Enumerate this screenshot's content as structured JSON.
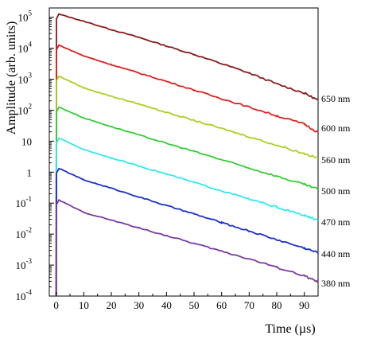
{
  "chart_data": {
    "type": "line",
    "xlabel": "Time (µs)",
    "ylabel": "Amplitude (arb. units)",
    "xlim": [
      -2.5,
      95
    ],
    "ylim_log10": [
      -4,
      5.3
    ],
    "y_scale": "log",
    "grid": false,
    "x_ticks": [
      {
        "v": 0,
        "label": "0"
      },
      {
        "v": 10,
        "label": "10"
      },
      {
        "v": 20,
        "label": "20"
      },
      {
        "v": 30,
        "label": "30"
      },
      {
        "v": 40,
        "label": "40"
      },
      {
        "v": 50,
        "label": "50"
      },
      {
        "v": 60,
        "label": "60"
      },
      {
        "v": 70,
        "label": "70"
      },
      {
        "v": 80,
        "label": "80"
      },
      {
        "v": 90,
        "label": "90"
      }
    ],
    "y_ticks": [
      {
        "e": 5,
        "base": "10",
        "sup": "5"
      },
      {
        "e": 4,
        "base": "10",
        "sup": "4"
      },
      {
        "e": 3,
        "base": "10",
        "sup": "3"
      },
      {
        "e": 2,
        "base": "10",
        "sup": "2"
      },
      {
        "e": 1,
        "base": "10",
        "sup": ""
      },
      {
        "e": 0,
        "base": "1",
        "sup": ""
      },
      {
        "e": -1,
        "base": "10",
        "sup": "-1"
      },
      {
        "e": -2,
        "base": "10",
        "sup": "-2"
      },
      {
        "e": -3,
        "base": "10",
        "sup": "-3"
      },
      {
        "e": -4,
        "base": "10",
        "sup": "-4"
      }
    ],
    "series": [
      {
        "name": "650 nm",
        "color": "#8b1a1a",
        "peak_t": 1.0,
        "x": [
          0,
          1,
          10,
          20,
          30,
          40,
          50,
          60,
          70,
          80,
          90,
          95
        ],
        "y_log10": [
          -4,
          5.1,
          4.87,
          4.6,
          4.35,
          4.07,
          3.8,
          3.5,
          3.2,
          2.85,
          2.55,
          2.32
        ]
      },
      {
        "name": "600 nm",
        "color": "#e02020",
        "peak_t": 1.0,
        "x": [
          0,
          1,
          10,
          20,
          30,
          40,
          50,
          60,
          70,
          80,
          90,
          95
        ],
        "y_log10": [
          -4,
          4.1,
          3.75,
          3.47,
          3.2,
          2.93,
          2.65,
          2.37,
          2.1,
          1.82,
          1.55,
          1.28
        ]
      },
      {
        "name": "560 nm",
        "color": "#a8d020",
        "peak_t": 1.0,
        "x": [
          0,
          1,
          10,
          20,
          30,
          40,
          50,
          60,
          70,
          80,
          90,
          95
        ],
        "y_log10": [
          -4,
          3.1,
          2.72,
          2.45,
          2.2,
          1.93,
          1.67,
          1.41,
          1.14,
          0.87,
          0.6,
          0.45
        ]
      },
      {
        "name": "500 nm",
        "color": "#33cc33",
        "peak_t": 1.0,
        "x": [
          0,
          1,
          10,
          20,
          30,
          40,
          50,
          60,
          70,
          80,
          90,
          95
        ],
        "y_log10": [
          -4,
          2.1,
          1.75,
          1.47,
          1.2,
          0.93,
          0.67,
          0.4,
          0.13,
          -0.13,
          -0.4,
          -0.55
        ]
      },
      {
        "name": "470 nm",
        "color": "#30e8f0",
        "peak_t": 1.0,
        "x": [
          0,
          1,
          10,
          20,
          30,
          40,
          50,
          60,
          70,
          80,
          90,
          95
        ],
        "y_log10": [
          -4,
          1.1,
          0.73,
          0.46,
          0.2,
          -0.06,
          -0.33,
          -0.6,
          -0.87,
          -1.13,
          -1.4,
          -1.55
        ]
      },
      {
        "name": "440 nm",
        "color": "#1a2ecc",
        "peak_t": 1.0,
        "x": [
          0,
          1,
          10,
          20,
          30,
          40,
          50,
          60,
          70,
          80,
          90,
          95
        ],
        "y_log10": [
          -4,
          0.12,
          -0.25,
          -0.52,
          -0.8,
          -1.08,
          -1.35,
          -1.63,
          -1.9,
          -2.18,
          -2.45,
          -2.6
        ]
      },
      {
        "name": "380 nm",
        "color": "#7a3aa0",
        "peak_t": 1.0,
        "x": [
          0,
          1,
          10,
          20,
          30,
          40,
          50,
          60,
          70,
          80,
          90,
          95
        ],
        "y_log10": [
          -4,
          -0.9,
          -1.3,
          -1.55,
          -1.8,
          -2.05,
          -2.3,
          -2.55,
          -2.8,
          -3.07,
          -3.35,
          -3.55
        ]
      }
    ]
  }
}
